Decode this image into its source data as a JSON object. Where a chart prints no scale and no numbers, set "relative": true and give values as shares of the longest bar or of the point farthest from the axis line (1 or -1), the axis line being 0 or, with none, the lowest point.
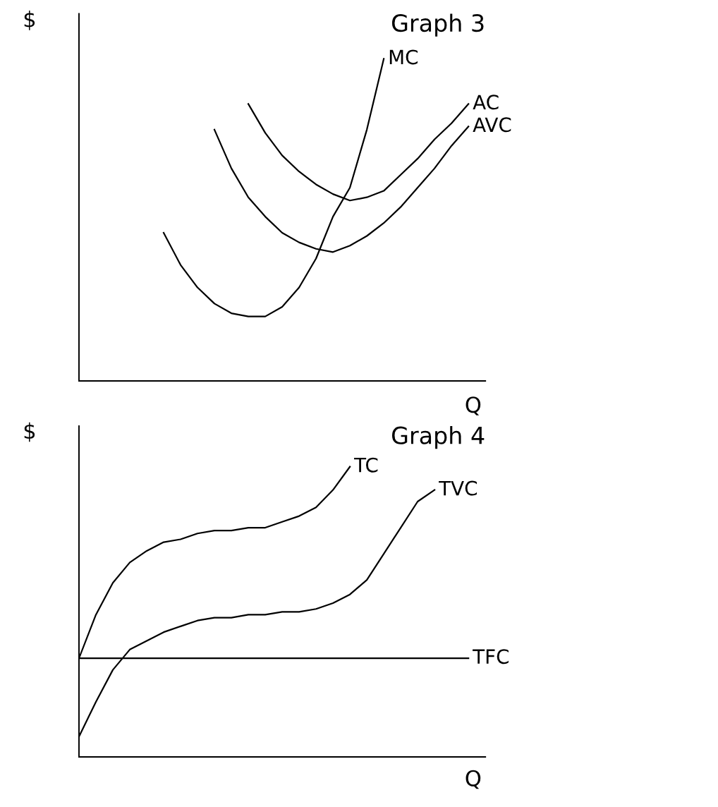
{
  "chart_data": [
    {
      "type": "line",
      "title": "Graph 3",
      "xlabel": "Q",
      "ylabel": "$",
      "relative": true,
      "legend": false,
      "grid": false,
      "categories": [
        null,
        null,
        null,
        null,
        null,
        null,
        null,
        null,
        null,
        null,
        null,
        null,
        null,
        null,
        null,
        null,
        null,
        null,
        null,
        null,
        null,
        null,
        null,
        null,
        null
      ],
      "series": [
        {
          "name": "MC",
          "color": "#000000",
          "values": [
            null,
            null,
            null,
            null,
            null,
            0.46,
            0.36,
            0.29,
            0.24,
            0.21,
            0.2,
            0.2,
            0.23,
            0.29,
            0.38,
            0.51,
            0.6,
            0.78,
            1.0,
            null,
            null,
            null,
            null,
            null,
            null
          ]
        },
        {
          "name": "AC",
          "color": "#000000",
          "values": [
            null,
            null,
            null,
            null,
            null,
            null,
            null,
            null,
            null,
            null,
            0.86,
            0.77,
            0.7,
            0.65,
            0.61,
            0.58,
            0.56,
            0.57,
            0.59,
            0.64,
            0.69,
            0.75,
            0.8,
            0.86,
            null
          ]
        },
        {
          "name": "AVC",
          "color": "#000000",
          "values": [
            null,
            null,
            null,
            null,
            null,
            null,
            null,
            null,
            0.78,
            0.66,
            0.57,
            0.51,
            0.46,
            0.43,
            0.41,
            0.4,
            0.42,
            0.45,
            0.49,
            0.54,
            0.6,
            0.66,
            0.73,
            0.79,
            null
          ]
        }
      ]
    },
    {
      "type": "line",
      "title": "Graph 4",
      "xlabel": "Q",
      "ylabel": "$",
      "relative": true,
      "legend": false,
      "grid": false,
      "categories": [
        null,
        null,
        null,
        null,
        null,
        null,
        null,
        null,
        null,
        null,
        null,
        null,
        null,
        null,
        null,
        null,
        null,
        null,
        null,
        null,
        null,
        null,
        null,
        null,
        null
      ],
      "series": [
        {
          "name": "TC",
          "color": "#000000",
          "values": [
            0.34,
            0.49,
            0.6,
            0.67,
            0.71,
            0.74,
            0.75,
            0.77,
            0.78,
            0.78,
            0.79,
            0.79,
            0.81,
            0.83,
            0.86,
            0.92,
            1.0,
            null,
            null,
            null,
            null,
            null,
            null,
            null,
            null
          ]
        },
        {
          "name": "TVC",
          "color": "#000000",
          "values": [
            0.07,
            0.19,
            0.3,
            0.37,
            0.4,
            0.43,
            0.45,
            0.47,
            0.48,
            0.48,
            0.49,
            0.49,
            0.5,
            0.5,
            0.51,
            0.53,
            0.56,
            0.61,
            0.7,
            0.79,
            0.88,
            0.92,
            null,
            null,
            null
          ]
        },
        {
          "name": "TFC",
          "color": "#000000",
          "values": [
            0.34,
            0.34,
            0.34,
            0.34,
            0.34,
            0.34,
            0.34,
            0.34,
            0.34,
            0.34,
            0.34,
            0.34,
            0.34,
            0.34,
            0.34,
            0.34,
            0.34,
            0.34,
            0.34,
            0.34,
            0.34,
            0.34,
            0.34,
            0.34,
            null
          ]
        }
      ]
    }
  ]
}
